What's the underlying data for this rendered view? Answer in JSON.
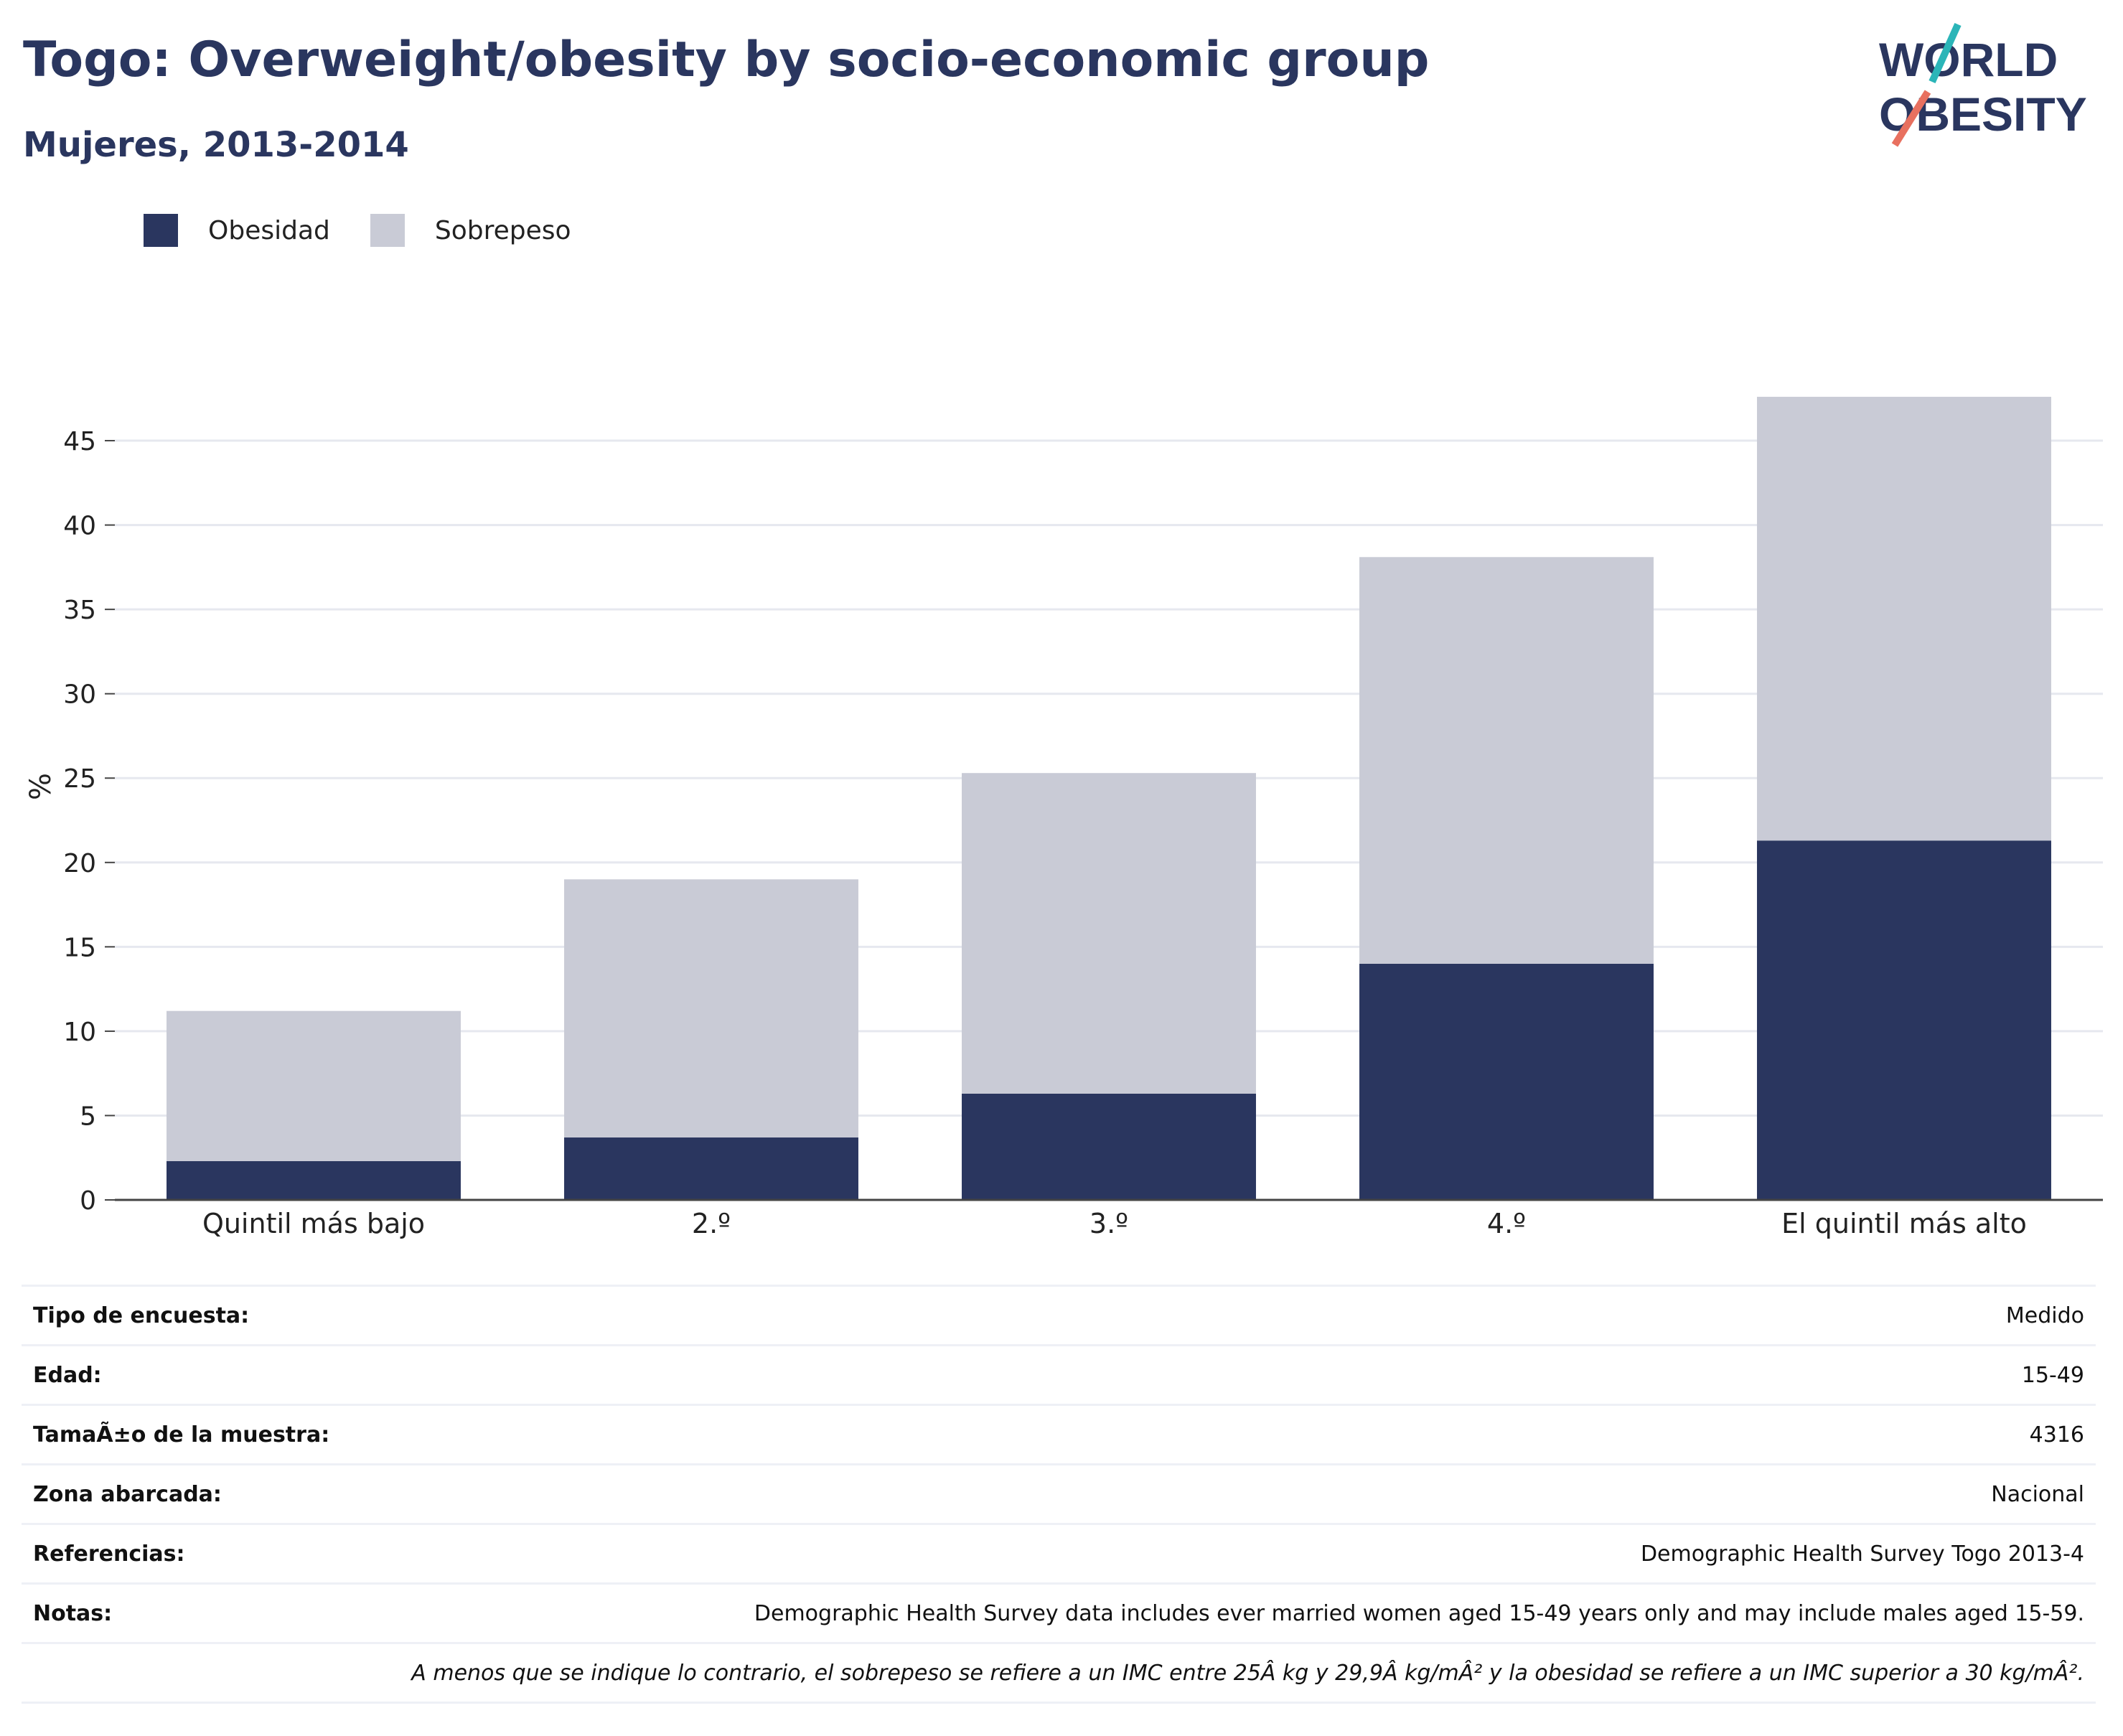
{
  "header": {
    "title": "Togo: Overweight/obesity by socio-economic group",
    "subtitle": "Mujeres, 2013-2014"
  },
  "logo": {
    "line1": "WORLD",
    "line2": "OBESITY",
    "colors": {
      "text": "#2a365f",
      "teal": "#2bb5b8",
      "coral": "#e8705f"
    }
  },
  "legend": {
    "items": [
      {
        "label": "Obesidad",
        "color": "#2a365f"
      },
      {
        "label": "Sobrepeso",
        "color": "#c9cbd6"
      }
    ]
  },
  "chart_data": {
    "type": "bar",
    "stacked": true,
    "categories": [
      "Quintil más bajo",
      "2.º",
      "3.º",
      "4.º",
      "El quintil más alto"
    ],
    "series": [
      {
        "name": "Obesidad",
        "color": "#2a365f",
        "values": [
          2.3,
          3.7,
          6.3,
          14.0,
          21.3
        ]
      },
      {
        "name": "Sobrepeso",
        "color": "#c9cbd6",
        "values": [
          8.9,
          15.3,
          19.0,
          24.1,
          26.3
        ]
      }
    ],
    "ylabel": "%",
    "ylim": [
      0,
      49
    ],
    "yticks": [
      0,
      5,
      10,
      15,
      20,
      25,
      30,
      35,
      40,
      45
    ],
    "grid": true
  },
  "info": {
    "rows": [
      {
        "key": "Tipo de encuesta:",
        "value": "Medido"
      },
      {
        "key": "Edad:",
        "value": "15-49"
      },
      {
        "key": "TamaÃ±o de la muestra:",
        "value": "4316"
      },
      {
        "key": "Zona abarcada:",
        "value": "Nacional"
      },
      {
        "key": "Referencias:",
        "value": "Demographic Health Survey Togo 2013-4"
      },
      {
        "key": "Notas:",
        "value": "Demographic Health Survey data includes ever married women aged 15-49 years only and may include males aged 15-59."
      }
    ],
    "footnote": "A menos que se indique lo contrario, el sobrepeso se refiere a un IMC entre 25Â kg y 29,9Â kg/mÂ² y la obesidad se refiere a un IMC superior a 30 kg/mÂ²."
  }
}
